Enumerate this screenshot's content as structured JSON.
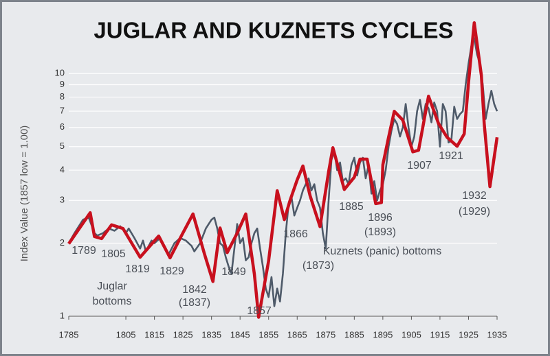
{
  "chart_data": {
    "type": "line",
    "title": "JUGLAR AND KUZNETS CYCLES",
    "y_label": "Index Value (1857 low = 1.00)",
    "log_scale": true,
    "grid": true,
    "xlim": [
      1785,
      1935
    ],
    "xticks": [
      1785,
      1805,
      1815,
      1825,
      1835,
      1845,
      1855,
      1865,
      1875,
      1885,
      1895,
      1905,
      1915,
      1925,
      1935
    ],
    "ylim": [
      1,
      18
    ],
    "yticks": [
      1,
      2,
      3,
      4,
      5,
      6,
      7,
      8,
      9,
      10
    ],
    "series": [
      {
        "color": "#4e5a69",
        "x": [
          1785,
          1787,
          1790,
          1792,
          1794,
          1795,
          1797,
          1799,
          1801,
          1803,
          1805,
          1806,
          1808,
          1810,
          1811,
          1812,
          1814,
          1815,
          1817,
          1819,
          1820,
          1822,
          1824,
          1826,
          1828,
          1829,
          1831,
          1833,
          1835,
          1836,
          1837,
          1838,
          1839,
          1840,
          1841,
          1842,
          1843,
          1844,
          1845,
          1846,
          1847,
          1848,
          1849,
          1850,
          1851,
          1852,
          1853,
          1854,
          1855,
          1856,
          1857,
          1858,
          1859,
          1860,
          1861,
          1862,
          1863,
          1864,
          1865,
          1866,
          1867,
          1868,
          1869,
          1870,
          1871,
          1872,
          1873,
          1874,
          1875,
          1876,
          1877,
          1878,
          1879,
          1880,
          1881,
          1882,
          1883,
          1884,
          1885,
          1886,
          1887,
          1888,
          1889,
          1890,
          1891,
          1892,
          1893,
          1894,
          1895,
          1896,
          1897,
          1898,
          1899,
          1900,
          1901,
          1902,
          1903,
          1904,
          1905,
          1906,
          1907,
          1908,
          1909,
          1910,
          1911,
          1912,
          1913,
          1914,
          1915,
          1916,
          1917,
          1918,
          1919,
          1920,
          1921,
          1922,
          1923,
          1924,
          1925,
          1926,
          1927,
          1928,
          1929,
          1930,
          1931,
          1932,
          1933,
          1934,
          1935
        ],
        "values": [
          2.0,
          2.2,
          2.5,
          2.55,
          2.2,
          2.15,
          2.2,
          2.3,
          2.25,
          2.35,
          2.2,
          2.3,
          2.1,
          1.9,
          2.05,
          1.85,
          2.05,
          2.0,
          2.1,
          1.9,
          1.8,
          2.0,
          2.1,
          2.05,
          1.95,
          1.85,
          2.0,
          2.3,
          2.5,
          2.55,
          2.3,
          2.0,
          1.95,
          1.75,
          1.6,
          1.5,
          1.9,
          2.4,
          2.0,
          2.1,
          1.7,
          1.75,
          2.0,
          2.2,
          2.3,
          1.9,
          1.6,
          1.3,
          1.2,
          1.45,
          1.1,
          1.3,
          1.15,
          1.5,
          2.2,
          2.9,
          3.1,
          2.6,
          2.8,
          3.0,
          3.3,
          3.5,
          3.7,
          3.3,
          3.5,
          3.0,
          2.8,
          2.2,
          1.9,
          3.0,
          4.4,
          4.8,
          4.0,
          4.3,
          3.6,
          3.7,
          3.5,
          4.2,
          4.5,
          3.8,
          4.3,
          4.5,
          3.7,
          4.2,
          3.2,
          3.6,
          3.0,
          3.3,
          3.5,
          4.0,
          5.0,
          5.8,
          6.5,
          6.2,
          5.5,
          6.0,
          7.5,
          6.0,
          5.0,
          5.5,
          7.0,
          7.8,
          6.5,
          7.5,
          7.2,
          6.3,
          7.6,
          7.0,
          5.0,
          7.5,
          7.0,
          5.2,
          5.3,
          7.3,
          6.5,
          6.8,
          7.0,
          9.0,
          11,
          13,
          14,
          12,
          11,
          9,
          6.5,
          7.5,
          8.5,
          7.5,
          7.0
        ]
      },
      {
        "color": "#c8101e",
        "x": [
          1785,
          1792.5,
          1794,
          1796.5,
          1800,
          1804,
          1810,
          1816.5,
          1820.5,
          1824.5,
          1828.5,
          1832.5,
          1835.5,
          1838,
          1840.5,
          1844,
          1847,
          1850,
          1851.5,
          1855,
          1858,
          1860.5,
          1862.5,
          1865,
          1867,
          1869.5,
          1873,
          1876,
          1877.5,
          1881.5,
          1885,
          1887,
          1889.5,
          1892.5,
          1894.5,
          1895,
          1897,
          1899,
          1902,
          1905.5,
          1907.5,
          1911,
          1914.5,
          1917.5,
          1921,
          1923.5,
          1925,
          1927,
          1929.5,
          1930.5,
          1932.5,
          1935
        ],
        "values": [
          1.99,
          2.67,
          2.13,
          2.09,
          2.38,
          2.3,
          1.75,
          2.14,
          1.74,
          2.15,
          2.64,
          1.81,
          1.39,
          2.31,
          1.83,
          2.2,
          2.64,
          1.49,
          0.99,
          1.69,
          3.29,
          2.5,
          3.0,
          3.65,
          4.16,
          3.14,
          2.34,
          3.94,
          4.95,
          3.33,
          3.74,
          4.44,
          4.44,
          2.91,
          2.94,
          4.21,
          5.46,
          6.99,
          6.43,
          4.76,
          4.83,
          8.07,
          6.22,
          5.46,
          5.02,
          5.64,
          9.19,
          16.2,
          9.81,
          6.22,
          3.42,
          5.46
        ]
      }
    ],
    "annotations": [
      "1789",
      "1805",
      "1819",
      "1829",
      "1842",
      "(1837)",
      "1849",
      "1857",
      "Juglar",
      "bottoms",
      "1866",
      "Kuznets (panic) bottoms",
      "(1873)",
      "1885",
      "1896",
      "(1893)",
      "1907",
      "1921",
      "1932",
      "(1929)"
    ]
  }
}
